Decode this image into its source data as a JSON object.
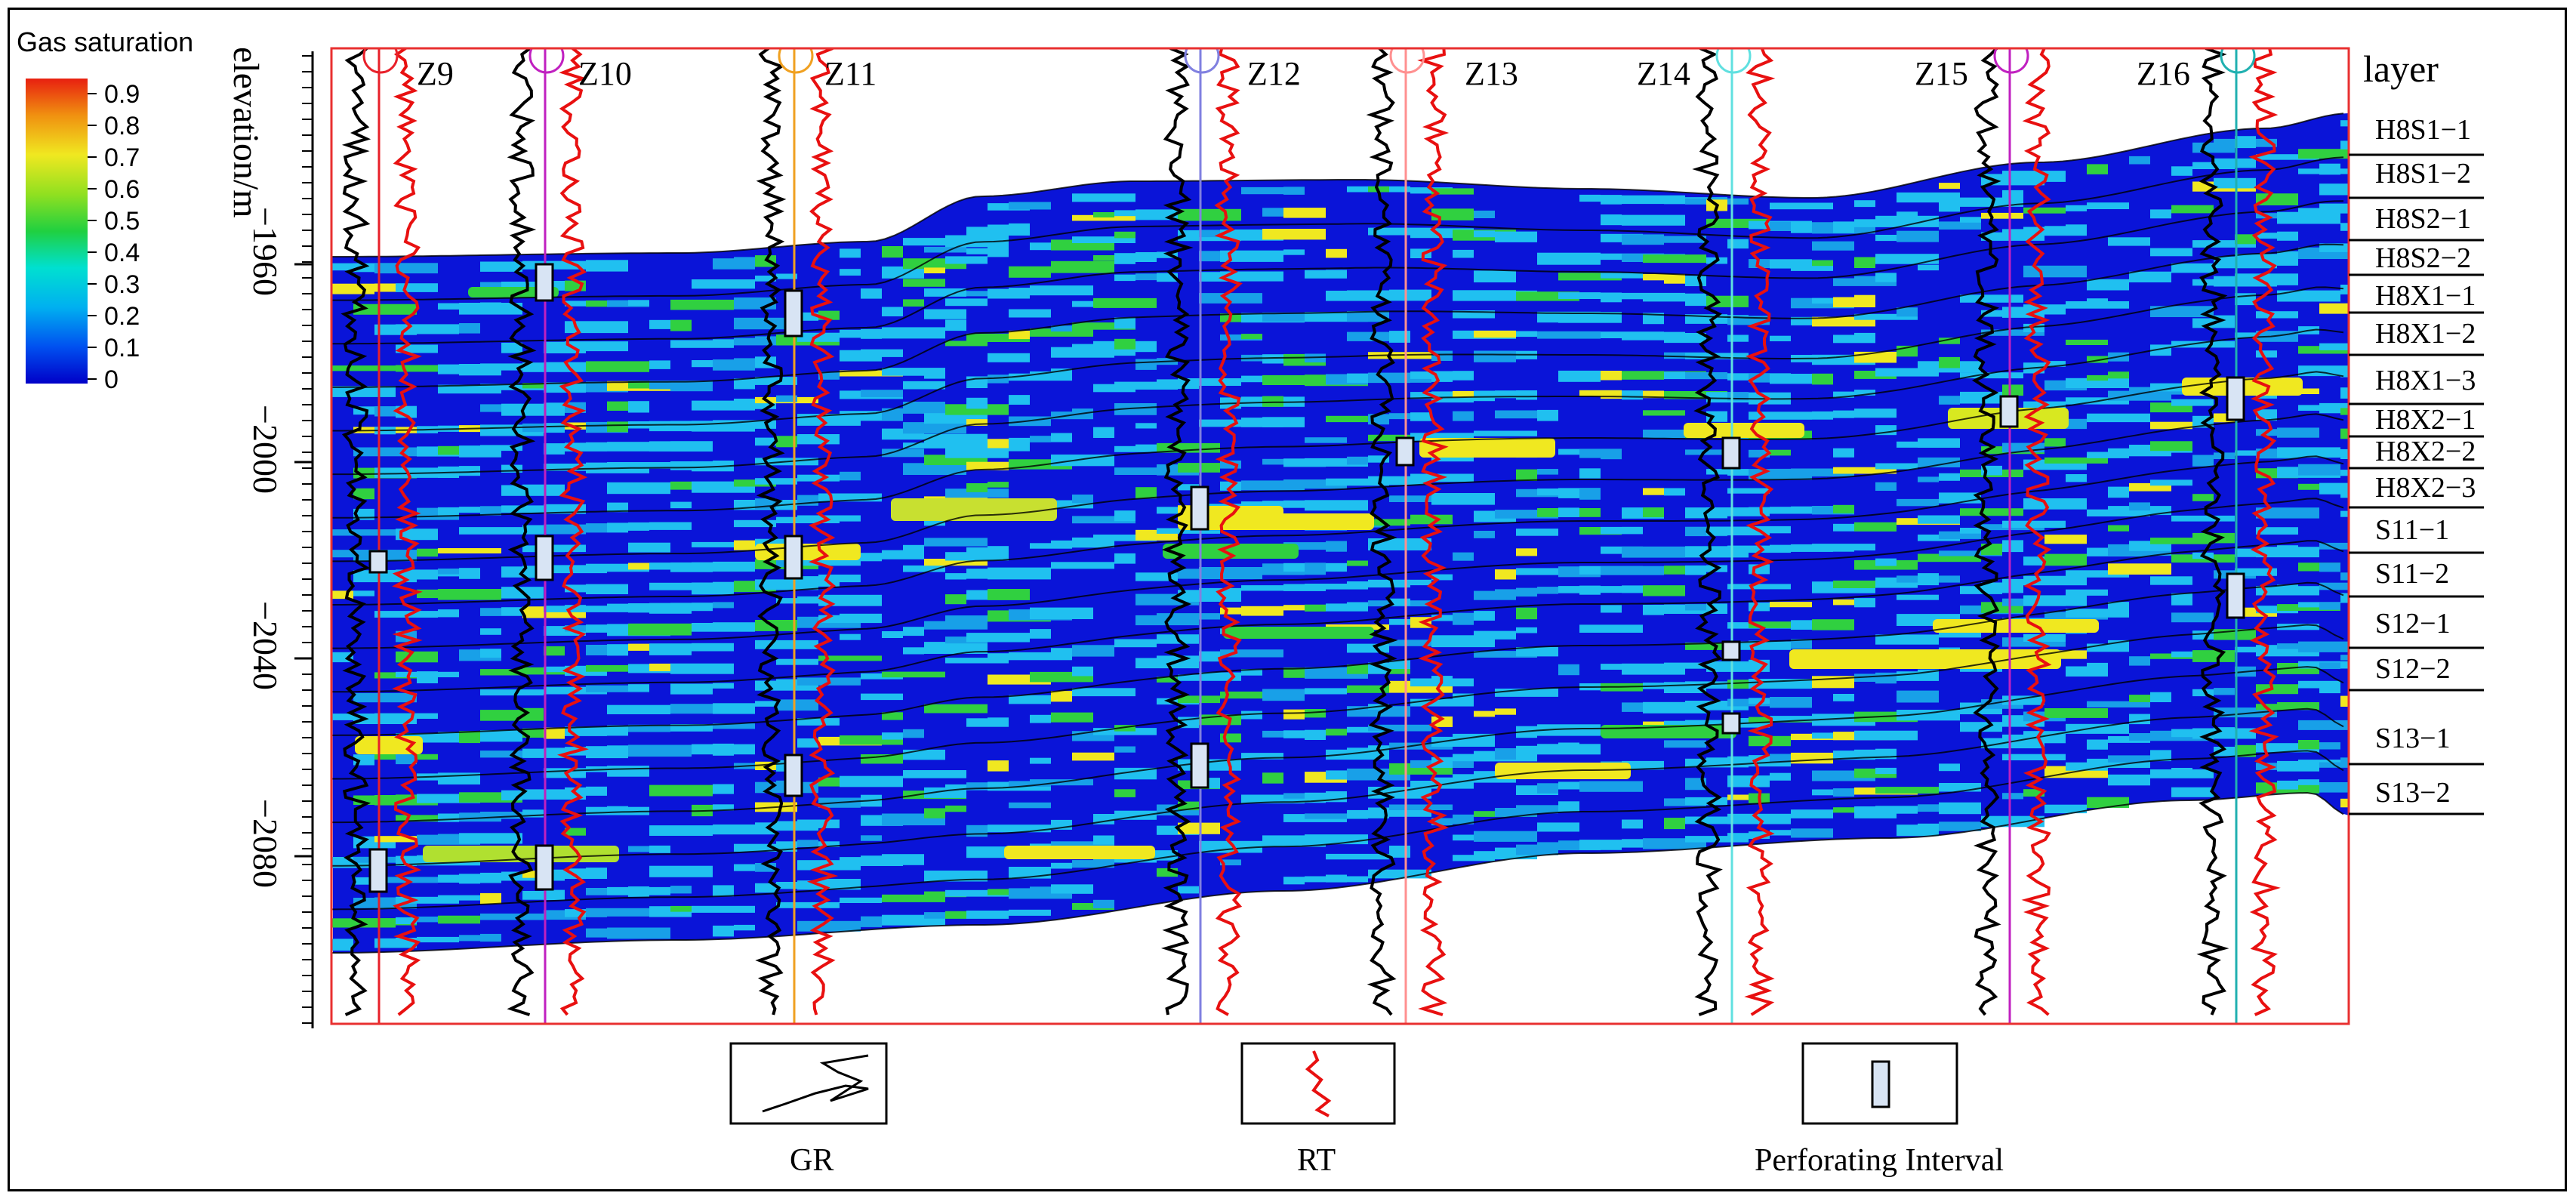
{
  "colorbar": {
    "title": "Gas saturation",
    "ticks": [
      "0.9",
      "0.8",
      "0.7",
      "0.6",
      "0.5",
      "0.4",
      "0.3",
      "0.2",
      "0.1",
      "0"
    ]
  },
  "y_axis": {
    "label": "elevation/m",
    "ticks": [
      "−1960",
      "−2000",
      "−2040",
      "−2080"
    ]
  },
  "wells": [
    "Z9",
    "Z10",
    "Z11",
    "Z12",
    "Z13",
    "Z14",
    "Z15",
    "Z16"
  ],
  "well_colors": [
    "#e8202a",
    "#c020c0",
    "#f0a020",
    "#8080e0",
    "#ff9090",
    "#60e0e0",
    "#c020c0",
    "#20b0b0"
  ],
  "layer_header": "layer",
  "layers": [
    "H8S1−1",
    "H8S1−2",
    "H8S2−1",
    "H8S2−2",
    "H8X1−1",
    "H8X1−2",
    "H8X1−3",
    "H8X2−1",
    "H8X2−2",
    "H8X2−3",
    "S11−1",
    "S11−2",
    "S12−1",
    "S12−2",
    "S13−1",
    "S13−2"
  ],
  "legend": {
    "gr_label": "GR",
    "rt_label": "RT",
    "perf_label": "Perforating Interval"
  },
  "palette": {
    "deep_blue": "#0a14d8",
    "cyan": "#20c0f0",
    "green": "#30d040",
    "yellow": "#f0e820",
    "frame_red": "#e83030",
    "rt_red": "#e81010",
    "gr_black": "#000000",
    "perf_fill": "#d8e4f4"
  }
}
